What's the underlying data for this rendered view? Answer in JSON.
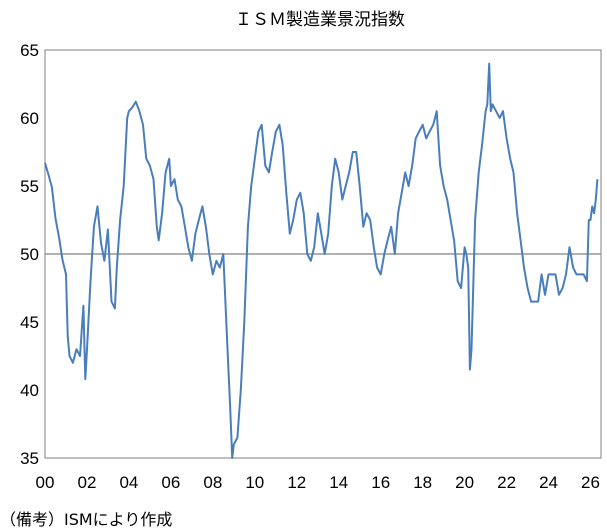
{
  "chart_data": {
    "type": "line",
    "title": "ＩＳＭ製造業景況指数",
    "source_note": "（備考）ISMにより作成",
    "xlabel": "",
    "ylabel": "",
    "x_ticks": [
      "00",
      "02",
      "04",
      "06",
      "08",
      "10",
      "12",
      "14",
      "16",
      "18",
      "20",
      "22",
      "24",
      "26"
    ],
    "y_ticks": [
      "35",
      "40",
      "45",
      "50",
      "55",
      "60",
      "65"
    ],
    "xlim": [
      2000.0,
      2026.5
    ],
    "ylim": [
      35,
      65
    ],
    "reference_line": 50,
    "grid": false,
    "colors": {
      "series": "#4a7ebb",
      "reference": "#808080",
      "axis": "#808080"
    },
    "series": [
      {
        "points": [
          [
            2000.0,
            56.7
          ],
          [
            2000.17,
            55.8
          ],
          [
            2000.33,
            54.9
          ],
          [
            2000.5,
            52.6
          ],
          [
            2000.67,
            51.2
          ],
          [
            2000.83,
            49.6
          ],
          [
            2001.0,
            48.5
          ],
          [
            2001.08,
            44.0
          ],
          [
            2001.17,
            42.5
          ],
          [
            2001.33,
            42.0
          ],
          [
            2001.5,
            43.0
          ],
          [
            2001.67,
            42.5
          ],
          [
            2001.83,
            46.2
          ],
          [
            2001.92,
            40.8
          ],
          [
            2002.0,
            43.0
          ],
          [
            2002.17,
            48.0
          ],
          [
            2002.33,
            52.0
          ],
          [
            2002.5,
            53.5
          ],
          [
            2002.67,
            50.8
          ],
          [
            2002.83,
            49.5
          ],
          [
            2003.0,
            51.8
          ],
          [
            2003.17,
            46.5
          ],
          [
            2003.33,
            46.0
          ],
          [
            2003.42,
            49.0
          ],
          [
            2003.58,
            52.5
          ],
          [
            2003.75,
            55.0
          ],
          [
            2003.92,
            60.0
          ],
          [
            2004.0,
            60.5
          ],
          [
            2004.17,
            60.8
          ],
          [
            2004.33,
            61.2
          ],
          [
            2004.5,
            60.5
          ],
          [
            2004.67,
            59.5
          ],
          [
            2004.83,
            57.0
          ],
          [
            2005.0,
            56.5
          ],
          [
            2005.17,
            55.5
          ],
          [
            2005.33,
            52.0
          ],
          [
            2005.42,
            51.0
          ],
          [
            2005.58,
            53.0
          ],
          [
            2005.75,
            56.0
          ],
          [
            2005.92,
            57.0
          ],
          [
            2006.0,
            55.0
          ],
          [
            2006.17,
            55.5
          ],
          [
            2006.33,
            54.0
          ],
          [
            2006.5,
            53.5
          ],
          [
            2006.67,
            52.0
          ],
          [
            2006.83,
            50.5
          ],
          [
            2007.0,
            49.5
          ],
          [
            2007.17,
            51.5
          ],
          [
            2007.33,
            52.5
          ],
          [
            2007.5,
            53.5
          ],
          [
            2007.67,
            52.0
          ],
          [
            2007.83,
            50.0
          ],
          [
            2008.0,
            48.5
          ],
          [
            2008.17,
            49.5
          ],
          [
            2008.33,
            49.0
          ],
          [
            2008.5,
            50.0
          ],
          [
            2008.67,
            44.0
          ],
          [
            2008.83,
            38.5
          ],
          [
            2008.92,
            35.0
          ],
          [
            2009.0,
            36.0
          ],
          [
            2009.17,
            36.5
          ],
          [
            2009.33,
            40.0
          ],
          [
            2009.5,
            45.0
          ],
          [
            2009.67,
            52.0
          ],
          [
            2009.83,
            55.0
          ],
          [
            2010.0,
            57.0
          ],
          [
            2010.17,
            59.0
          ],
          [
            2010.33,
            59.5
          ],
          [
            2010.5,
            56.5
          ],
          [
            2010.67,
            56.0
          ],
          [
            2010.83,
            57.5
          ],
          [
            2011.0,
            59.0
          ],
          [
            2011.17,
            59.5
          ],
          [
            2011.33,
            58.0
          ],
          [
            2011.5,
            54.5
          ],
          [
            2011.67,
            51.5
          ],
          [
            2011.83,
            52.5
          ],
          [
            2012.0,
            54.0
          ],
          [
            2012.17,
            54.5
          ],
          [
            2012.33,
            53.0
          ],
          [
            2012.5,
            50.0
          ],
          [
            2012.67,
            49.5
          ],
          [
            2012.83,
            50.5
          ],
          [
            2013.0,
            53.0
          ],
          [
            2013.17,
            51.5
          ],
          [
            2013.33,
            50.0
          ],
          [
            2013.5,
            51.5
          ],
          [
            2013.67,
            55.0
          ],
          [
            2013.83,
            57.0
          ],
          [
            2014.0,
            56.0
          ],
          [
            2014.17,
            54.0
          ],
          [
            2014.33,
            55.0
          ],
          [
            2014.5,
            56.0
          ],
          [
            2014.67,
            57.5
          ],
          [
            2014.83,
            57.5
          ],
          [
            2015.0,
            55.0
          ],
          [
            2015.17,
            52.0
          ],
          [
            2015.33,
            53.0
          ],
          [
            2015.5,
            52.5
          ],
          [
            2015.67,
            50.5
          ],
          [
            2015.83,
            49.0
          ],
          [
            2016.0,
            48.5
          ],
          [
            2016.17,
            50.0
          ],
          [
            2016.33,
            51.0
          ],
          [
            2016.5,
            52.0
          ],
          [
            2016.67,
            50.0
          ],
          [
            2016.83,
            53.0
          ],
          [
            2017.0,
            54.5
          ],
          [
            2017.17,
            56.0
          ],
          [
            2017.33,
            55.0
          ],
          [
            2017.5,
            56.5
          ],
          [
            2017.67,
            58.5
          ],
          [
            2017.83,
            59.0
          ],
          [
            2018.0,
            59.5
          ],
          [
            2018.17,
            58.5
          ],
          [
            2018.33,
            59.0
          ],
          [
            2018.5,
            59.5
          ],
          [
            2018.67,
            60.5
          ],
          [
            2018.83,
            56.5
          ],
          [
            2019.0,
            55.0
          ],
          [
            2019.17,
            54.0
          ],
          [
            2019.33,
            52.5
          ],
          [
            2019.5,
            51.0
          ],
          [
            2019.67,
            48.0
          ],
          [
            2019.83,
            47.5
          ],
          [
            2020.0,
            50.5
          ],
          [
            2020.08,
            50.0
          ],
          [
            2020.17,
            49.0
          ],
          [
            2020.25,
            41.5
          ],
          [
            2020.33,
            43.0
          ],
          [
            2020.5,
            52.5
          ],
          [
            2020.67,
            56.0
          ],
          [
            2020.83,
            58.0
          ],
          [
            2021.0,
            60.5
          ],
          [
            2021.08,
            61.0
          ],
          [
            2021.17,
            64.0
          ],
          [
            2021.25,
            60.5
          ],
          [
            2021.33,
            61.0
          ],
          [
            2021.5,
            60.5
          ],
          [
            2021.67,
            60.0
          ],
          [
            2021.83,
            60.5
          ],
          [
            2022.0,
            58.5
          ],
          [
            2022.17,
            57.0
          ],
          [
            2022.33,
            56.0
          ],
          [
            2022.5,
            53.0
          ],
          [
            2022.67,
            51.0
          ],
          [
            2022.83,
            49.0
          ],
          [
            2023.0,
            47.5
          ],
          [
            2023.17,
            46.5
          ],
          [
            2023.33,
            46.5
          ],
          [
            2023.5,
            46.5
          ],
          [
            2023.67,
            48.5
          ],
          [
            2023.83,
            47.0
          ],
          [
            2024.0,
            48.5
          ],
          [
            2024.17,
            48.5
          ],
          [
            2024.33,
            48.5
          ],
          [
            2024.5,
            47.0
          ],
          [
            2024.67,
            47.5
          ],
          [
            2024.83,
            48.5
          ],
          [
            2025.0,
            50.5
          ],
          [
            2025.17,
            49.0
          ],
          [
            2025.33,
            48.5
          ],
          [
            2025.5,
            48.5
          ],
          [
            2025.67,
            48.5
          ],
          [
            2025.83,
            48.0
          ],
          [
            2025.92,
            52.5
          ],
          [
            2026.0,
            52.5
          ],
          [
            2026.08,
            53.5
          ],
          [
            2026.17,
            53.0
          ],
          [
            2026.25,
            54.0
          ],
          [
            2026.33,
            55.5
          ]
        ]
      }
    ]
  }
}
